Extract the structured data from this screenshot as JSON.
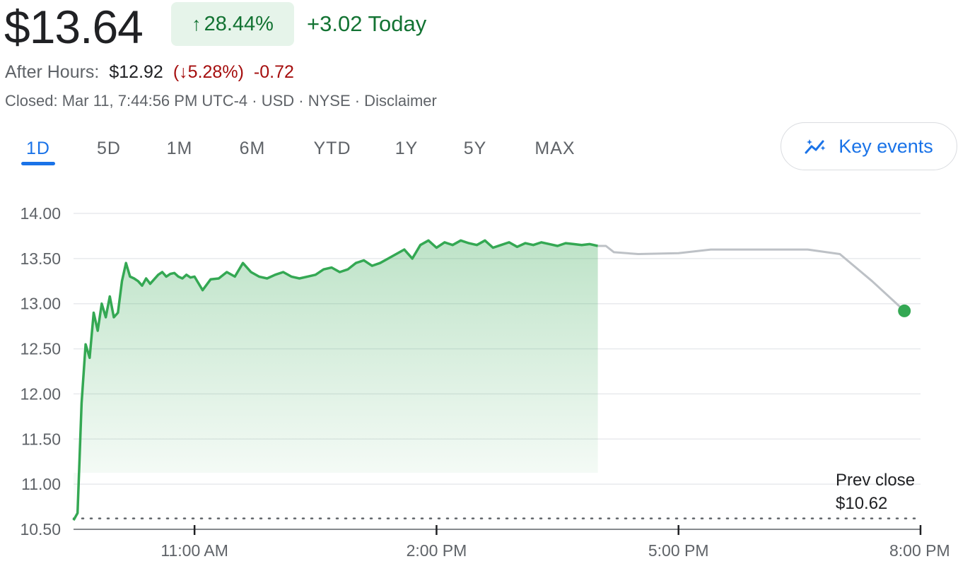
{
  "header": {
    "price": "$13.64",
    "change_arrow": "↑",
    "change_pct": "28.44%",
    "change_today": "+3.02 Today"
  },
  "after_hours": {
    "label": "After Hours:",
    "price": "$12.92",
    "change_open": "(",
    "change_arrow": "↓",
    "change_pct": "5.28%",
    "change_close": ")",
    "change_abs": "-0.72"
  },
  "status": {
    "text": "Closed: Mar 11, 7:44:56 PM UTC-4 · USD · NYSE · Disclaimer"
  },
  "tabs": [
    "1D",
    "5D",
    "1M",
    "6M",
    "YTD",
    "1Y",
    "5Y",
    "MAX"
  ],
  "active_tab": "1D",
  "key_events": {
    "label": "Key events",
    "icon": "sparkle-chart-icon"
  },
  "colors": {
    "positive": "#137333",
    "negative": "#a50e0e",
    "accent": "#1a73e8",
    "line_market": "#34a853",
    "line_after_hours": "#bdc1c6"
  },
  "chart_data": {
    "type": "line",
    "ylim": [
      10.5,
      14.0
    ],
    "yticks": [
      "14.00",
      "13.50",
      "13.00",
      "12.50",
      "12.00",
      "11.50",
      "11.00",
      "10.50"
    ],
    "xticks": [
      "11:00 AM",
      "2:00 PM",
      "5:00 PM",
      "8:00 PM"
    ],
    "xlim_hours": [
      9.5,
      20.0
    ],
    "prev_close": {
      "label": "Prev close",
      "value_label": "$10.62",
      "value": 10.62
    },
    "series": [
      {
        "segment": "market",
        "x": [
          9.5,
          9.55,
          9.6,
          9.65,
          9.7,
          9.75,
          9.8,
          9.85,
          9.9,
          9.95,
          10.0,
          10.05,
          10.1,
          10.15,
          10.2,
          10.25,
          10.3,
          10.35,
          10.4,
          10.45,
          10.5,
          10.55,
          10.6,
          10.65,
          10.7,
          10.75,
          10.8,
          10.85,
          10.9,
          10.95,
          11.0,
          11.1,
          11.2,
          11.3,
          11.4,
          11.5,
          11.6,
          11.7,
          11.8,
          11.9,
          12.0,
          12.1,
          12.2,
          12.3,
          12.4,
          12.5,
          12.6,
          12.7,
          12.8,
          12.9,
          13.0,
          13.1,
          13.2,
          13.3,
          13.4,
          13.5,
          13.6,
          13.7,
          13.8,
          13.9,
          14.0,
          14.1,
          14.2,
          14.3,
          14.4,
          14.5,
          14.6,
          14.7,
          14.8,
          14.9,
          15.0,
          15.1,
          15.2,
          15.3,
          15.4,
          15.5,
          15.6,
          15.7,
          15.8,
          15.9,
          16.0
        ],
        "y": [
          10.6,
          10.68,
          11.9,
          12.55,
          12.4,
          12.9,
          12.7,
          13.0,
          12.85,
          13.08,
          12.85,
          12.9,
          13.25,
          13.45,
          13.3,
          13.28,
          13.25,
          13.2,
          13.28,
          13.22,
          13.27,
          13.32,
          13.35,
          13.3,
          13.33,
          13.34,
          13.3,
          13.28,
          13.32,
          13.29,
          13.3,
          13.15,
          13.27,
          13.28,
          13.35,
          13.3,
          13.45,
          13.35,
          13.3,
          13.28,
          13.32,
          13.35,
          13.3,
          13.28,
          13.3,
          13.32,
          13.38,
          13.4,
          13.35,
          13.38,
          13.45,
          13.48,
          13.42,
          13.45,
          13.5,
          13.55,
          13.6,
          13.5,
          13.65,
          13.7,
          13.62,
          13.68,
          13.65,
          13.7,
          13.67,
          13.65,
          13.7,
          13.62,
          13.65,
          13.68,
          13.63,
          13.67,
          13.65,
          13.68,
          13.66,
          13.64,
          13.67,
          13.66,
          13.65,
          13.66,
          13.64
        ]
      },
      {
        "segment": "after_hours",
        "x": [
          16.0,
          16.1,
          16.2,
          16.5,
          17.0,
          17.4,
          17.8,
          18.2,
          18.6,
          19.0,
          19.4,
          19.8
        ],
        "y": [
          13.64,
          13.64,
          13.57,
          13.55,
          13.56,
          13.6,
          13.6,
          13.6,
          13.6,
          13.55,
          13.25,
          12.92
        ]
      }
    ]
  }
}
